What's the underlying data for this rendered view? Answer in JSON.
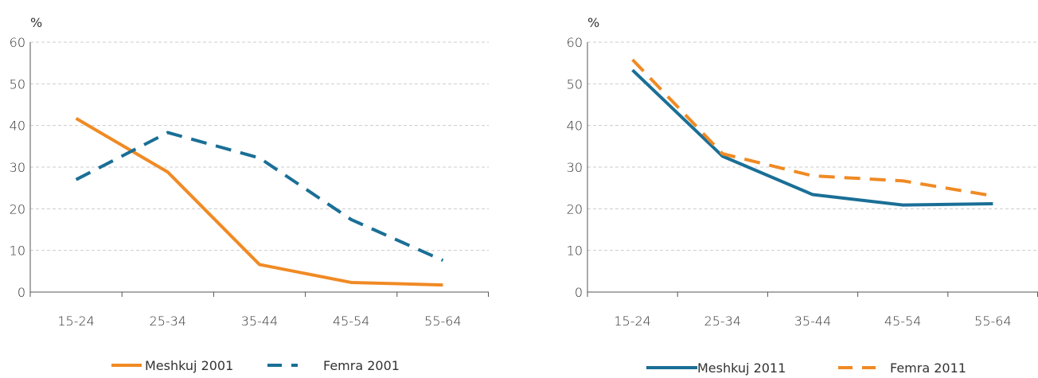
{
  "chart_data": [
    {
      "type": "line",
      "title": "",
      "xlabel": "",
      "ylabel": "%",
      "categories": [
        "15-24",
        "25-34",
        "35-44",
        "45-54",
        "55-64"
      ],
      "ylim": [
        0,
        60
      ],
      "yticks": [
        "0",
        "10",
        "20",
        "30",
        "40",
        "50",
        "60"
      ],
      "grid": true,
      "legend_position": "bottom",
      "series": [
        {
          "name": "Meshkuj 2001",
          "values": [
            41.7,
            28.8,
            6.6,
            2.3,
            1.7
          ],
          "color": "#f08a24",
          "dashed": false
        },
        {
          "name": "Femra 2001",
          "values": [
            27.0,
            38.3,
            32.2,
            17.4,
            7.6
          ],
          "color": "#1a6f96",
          "dashed": true
        }
      ]
    },
    {
      "type": "line",
      "title": "",
      "xlabel": "",
      "ylabel": "%",
      "categories": [
        "15-24",
        "25-34",
        "35-44",
        "45-54",
        "55-64"
      ],
      "ylim": [
        0,
        60
      ],
      "yticks": [
        "0",
        "10",
        "20",
        "30",
        "40",
        "50",
        "60"
      ],
      "grid": true,
      "legend_position": "bottom",
      "series": [
        {
          "name": "Meshkuj 2011",
          "values": [
            53.3,
            32.6,
            23.4,
            20.9,
            21.2
          ],
          "color": "#1a6f96",
          "dashed": false
        },
        {
          "name": "Femra 2011",
          "values": [
            55.8,
            33.2,
            27.9,
            26.7,
            23.1
          ],
          "color": "#f08a24",
          "dashed": true
        }
      ]
    }
  ]
}
